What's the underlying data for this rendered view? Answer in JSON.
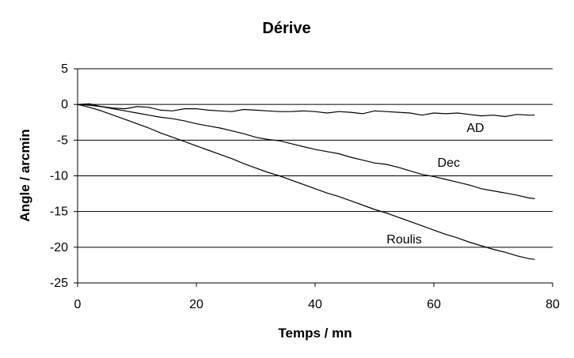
{
  "chart_data": {
    "type": "line",
    "title": "Dérive",
    "xlabel": "Temps / mn",
    "ylabel": "Angle / arcmin",
    "xlim": [
      0,
      80
    ],
    "ylim": [
      -25,
      5
    ],
    "x_ticks": [
      0,
      20,
      40,
      60,
      80
    ],
    "y_ticks": [
      5,
      0,
      -5,
      -10,
      -15,
      -20,
      -25
    ],
    "grid": "horizontal",
    "legend": "inline-labels",
    "series": [
      {
        "name": "AD",
        "x": [
          0,
          2,
          4,
          6,
          8,
          10,
          12,
          14,
          16,
          18,
          20,
          22,
          24,
          26,
          28,
          30,
          32,
          34,
          36,
          38,
          40,
          42,
          44,
          46,
          48,
          50,
          52,
          54,
          56,
          58,
          60,
          62,
          64,
          66,
          68,
          70,
          72,
          74,
          76,
          77
        ],
        "values": [
          0,
          0.1,
          -0.3,
          -0.5,
          -0.6,
          -0.3,
          -0.4,
          -0.8,
          -0.9,
          -0.6,
          -0.6,
          -0.8,
          -0.9,
          -1.0,
          -0.7,
          -0.8,
          -0.9,
          -1.0,
          -1.0,
          -0.9,
          -1.0,
          -1.2,
          -1.0,
          -1.1,
          -1.3,
          -0.9,
          -1.0,
          -1.1,
          -1.2,
          -1.5,
          -1.2,
          -1.3,
          -1.2,
          -1.4,
          -1.6,
          -1.5,
          -1.7,
          -1.4,
          -1.5,
          -1.5
        ]
      },
      {
        "name": "Dec",
        "x": [
          0,
          2,
          4,
          6,
          8,
          10,
          12,
          14,
          16,
          18,
          20,
          22,
          24,
          26,
          28,
          30,
          32,
          34,
          36,
          38,
          40,
          42,
          44,
          46,
          48,
          50,
          52,
          54,
          56,
          58,
          60,
          62,
          64,
          66,
          68,
          70,
          72,
          74,
          76,
          77
        ],
        "values": [
          0,
          -0.1,
          -0.3,
          -0.6,
          -0.9,
          -1.2,
          -1.5,
          -1.8,
          -2.0,
          -2.3,
          -2.7,
          -3.0,
          -3.3,
          -3.7,
          -4.1,
          -4.6,
          -4.9,
          -5.1,
          -5.5,
          -5.9,
          -6.3,
          -6.6,
          -6.9,
          -7.4,
          -7.8,
          -8.2,
          -8.4,
          -8.8,
          -9.3,
          -9.8,
          -10.1,
          -10.5,
          -10.9,
          -11.3,
          -11.8,
          -12.1,
          -12.4,
          -12.7,
          -13.1,
          -13.2
        ]
      },
      {
        "name": "Roulis",
        "x": [
          0,
          2,
          4,
          6,
          8,
          10,
          12,
          14,
          16,
          18,
          20,
          22,
          24,
          26,
          28,
          30,
          32,
          34,
          36,
          38,
          40,
          42,
          44,
          46,
          48,
          50,
          52,
          54,
          56,
          58,
          60,
          62,
          64,
          66,
          68,
          70,
          72,
          74,
          76,
          77
        ],
        "values": [
          0,
          -0.4,
          -0.9,
          -1.5,
          -2.1,
          -2.7,
          -3.3,
          -4.0,
          -4.6,
          -5.2,
          -5.8,
          -6.4,
          -7.0,
          -7.6,
          -8.3,
          -8.9,
          -9.5,
          -10.0,
          -10.6,
          -11.2,
          -11.8,
          -12.4,
          -12.9,
          -13.5,
          -14.1,
          -14.7,
          -15.2,
          -15.8,
          -16.4,
          -17.0,
          -17.6,
          -18.2,
          -18.7,
          -19.3,
          -19.8,
          -20.3,
          -20.7,
          -21.2,
          -21.6,
          -21.7
        ]
      }
    ],
    "series_labels": [
      {
        "series": "AD",
        "text": "AD",
        "x": 67,
        "y": -3.3
      },
      {
        "series": "Dec",
        "text": "Dec",
        "x": 62.5,
        "y": -8.2
      },
      {
        "series": "Roulis",
        "text": "Roulis",
        "x": 55,
        "y": -18.9
      }
    ]
  }
}
